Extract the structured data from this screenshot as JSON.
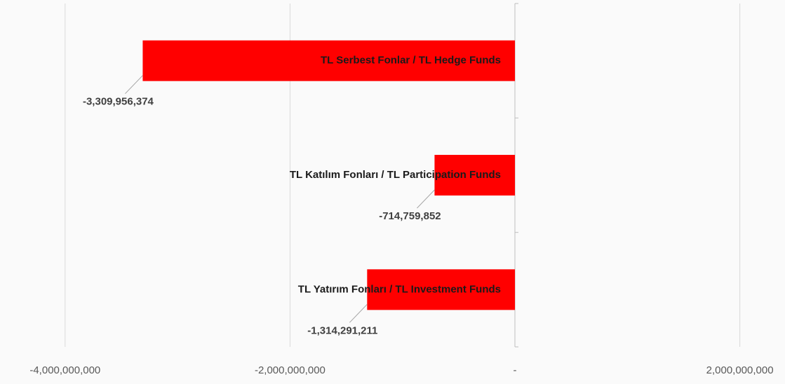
{
  "chart_data": {
    "type": "bar",
    "orientation": "horizontal",
    "categories": [
      "TL Serbest Fonlar / TL Hedge Funds",
      "TL Katılım Fonları / TL Participation Funds",
      "TL Yatırım Fonları / TL Investment Funds"
    ],
    "values": [
      -3309956374,
      -714759852,
      -1314291211
    ],
    "value_labels": [
      "-3,309,956,374",
      "-714,759,852",
      "-1,314,291,211"
    ],
    "color": "#ff0000",
    "xlim": [
      -4400000000,
      2300000000
    ],
    "xticks": [
      {
        "value": -4000000000,
        "label": "-4,000,000,000"
      },
      {
        "value": -2000000000,
        "label": "-2,000,000,000"
      },
      {
        "value": 0,
        "label": "-"
      },
      {
        "value": 2000000000,
        "label": "2,000,000,000"
      }
    ],
    "grid": true
  }
}
